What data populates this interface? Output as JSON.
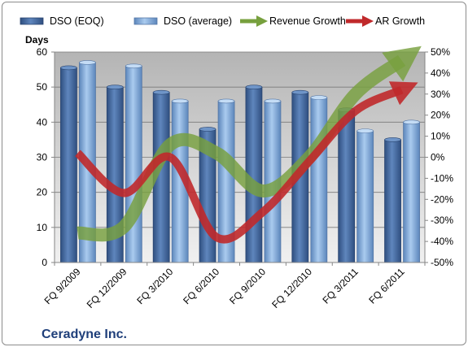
{
  "chart_data": {
    "type": "bar",
    "company": "Ceradyne Inc.",
    "ylabel": "Days",
    "categories": [
      "FQ 9/2009",
      "FQ 12/2009",
      "FQ 3/2010",
      "FQ 6/2010",
      "FQ 9/2010",
      "FQ 12/2010",
      "FQ 3/2011",
      "FQ 6/2011"
    ],
    "ylim": [
      0,
      60
    ],
    "yticks": [
      "0",
      "10",
      "20",
      "30",
      "40",
      "50",
      "60"
    ],
    "y2lim": [
      -50,
      50
    ],
    "y2ticks": [
      "-50%",
      "-40%",
      "-30%",
      "-20%",
      "-10%",
      "0%",
      "10%",
      "20%",
      "30%",
      "40%",
      "50%"
    ],
    "series": [
      {
        "name": "DSO (EOQ)",
        "kind": "bar",
        "color": "#4a6fa5",
        "values": [
          55.5,
          50,
          48.5,
          38,
          50,
          48.5,
          43.5,
          35
        ]
      },
      {
        "name": "DSO (average)",
        "kind": "bar",
        "color": "#8db3e2",
        "values": [
          57,
          56,
          46,
          46,
          46,
          47,
          37.5,
          40
        ]
      },
      {
        "name": "Revenue Growth",
        "kind": "line",
        "axis": "secondary",
        "color": "#77a03e",
        "values": [
          -36,
          -33,
          6,
          2,
          -16,
          0,
          30,
          46
        ]
      },
      {
        "name": "AR Growth",
        "kind": "line",
        "axis": "secondary",
        "color": "#c0292b",
        "values": [
          2,
          -17,
          0,
          -38,
          -26,
          -2,
          22,
          32
        ]
      }
    ],
    "grid": true,
    "legend": "top"
  }
}
